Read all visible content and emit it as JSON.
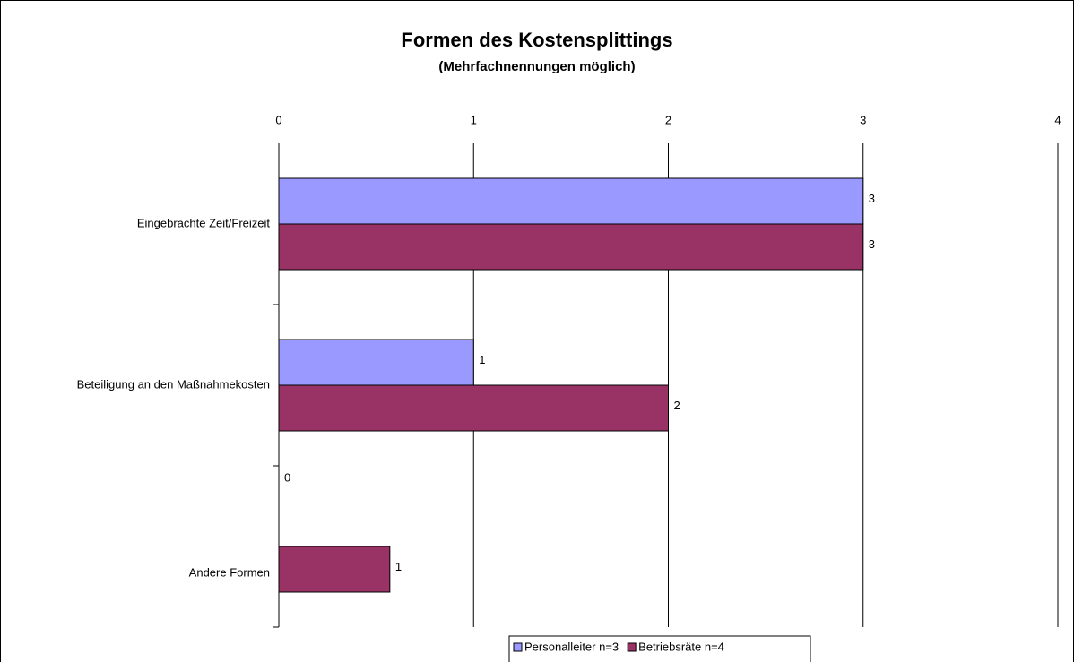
{
  "chart_data": {
    "type": "barh",
    "title": "Formen des Kostensplittings",
    "subtitle": "(Mehrfachnennungen möglich)",
    "categories": [
      "Eingebrachte Zeit/Freizeit",
      "Beteiligung an den Maßnahmekosten",
      "Andere Formen"
    ],
    "series": [
      {
        "name": "Personalleiter n=3",
        "color": "#9999ff",
        "values": [
          3,
          1,
          0
        ]
      },
      {
        "name": "Betriebsräte n=4",
        "color": "#993366",
        "values": [
          3,
          2,
          0.57
        ],
        "value_labels": [
          "3",
          "2",
          "1"
        ]
      }
    ],
    "xlim": [
      0,
      4
    ],
    "xticks": [
      0,
      1,
      2,
      3,
      4
    ],
    "grid": true,
    "legend": "bottom"
  }
}
